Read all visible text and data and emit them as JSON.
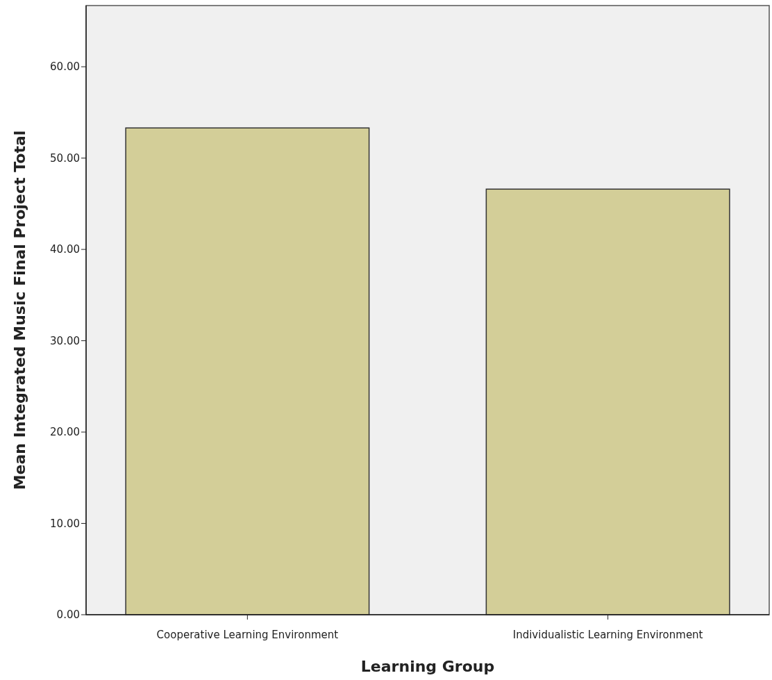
{
  "chart_data": {
    "type": "bar",
    "xlabel": "Learning Group",
    "ylabel": "Mean Integrated Music Final Project Total",
    "categories": [
      "Cooperative Learning Environment",
      "Individualistic Learning Environment"
    ],
    "values": [
      53.3,
      46.6
    ],
    "color": "#d3ce98",
    "ylim": [
      0,
      66.7
    ],
    "yticks": [
      {
        "value": 0,
        "label": "0.00"
      },
      {
        "value": 10,
        "label": "10.00"
      },
      {
        "value": 20,
        "label": "20.00"
      },
      {
        "value": 30,
        "label": "30.00"
      },
      {
        "value": 40,
        "label": "40.00"
      },
      {
        "value": 50,
        "label": "50.00"
      },
      {
        "value": 60,
        "label": "60.00"
      }
    ],
    "grid": false
  }
}
